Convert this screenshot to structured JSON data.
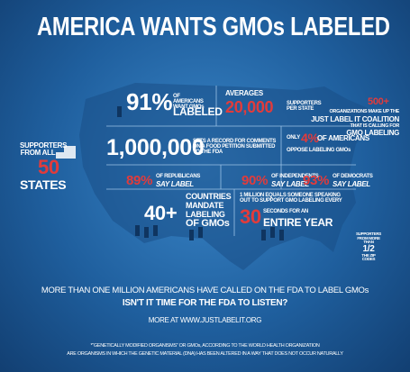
{
  "title": "AMERICA WANTS GMOs LABELED",
  "states": {
    "lead": "SUPPORTERS FROM ALL",
    "number": "50",
    "label": "STATES"
  },
  "americans": {
    "number": "91%",
    "text": "OF AMERICANS WANT GMOs",
    "label": "LABELED"
  },
  "averages": {
    "lead": "AVERAGES",
    "number": "20,000",
    "text": "SUPPORTERS PER STATE"
  },
  "coalition": {
    "number": "500+",
    "lines": [
      "ORGANIZATIONS MAKE UP THE",
      "JUST LABEL IT COALITION",
      "THAT IS CALLING FOR",
      "GMO LABELING"
    ]
  },
  "comments": {
    "number": "1,000,000",
    "text": "SETS A RECORD FOR COMMENTS ON A FOOD PETITION SUBMITTED TO THE FDA"
  },
  "oppose": {
    "lead": "ONLY",
    "number": "4%",
    "text": "OF AMERICANS",
    "label": "OPPOSE LABELING GMOs"
  },
  "parties": [
    {
      "number": "89%",
      "text": "OF REPUBLICANS",
      "label": "SAY LABEL"
    },
    {
      "number": "90%",
      "text": "OF INDEPENDENTS",
      "label": "SAY LABEL"
    },
    {
      "number": "93%",
      "text": "OF DEMOCRATS",
      "label": "SAY LABEL"
    }
  ],
  "countries": {
    "number": "40+",
    "lines": [
      "COUNTRIES",
      "MANDATE",
      "LABELING"
    ],
    "label": "OF GMOs"
  },
  "seconds": {
    "text": "1 MILLION EQUALS SOMEONE SPEAKING OUT TO SUPPORT GMO LABELING EVERY",
    "number": "30",
    "lead": "SECONDS FOR AN",
    "label": "ENTIRE YEAR"
  },
  "zip": {
    "lines": [
      "SUPPORTERS",
      "FROM MORE",
      "THAN"
    ],
    "number": "1/2",
    "label": "THE ZIP CODES"
  },
  "footer": {
    "line1": "MORE THAN ONE MILLION AMERICANS HAVE CALLED ON THE FDA TO LABEL GMOs",
    "line2": "ISN'T IT TIME FOR THE FDA TO LISTEN?",
    "url": "MORE AT WWW.JUSTLABELIT.ORG",
    "note1": "*“GENETICALLY MODIFIED ORGANISMS” OR GMOs, ACCORDING TO THE WORLD HEALTH ORGANIZATION",
    "note2": "ARE ORGANISMS IN WHICH THE GENETIC MATERIAL (DNA) HAS BEEN ALTERED IN A WAY THAT DOES NOT OCCUR NATURALLY"
  }
}
